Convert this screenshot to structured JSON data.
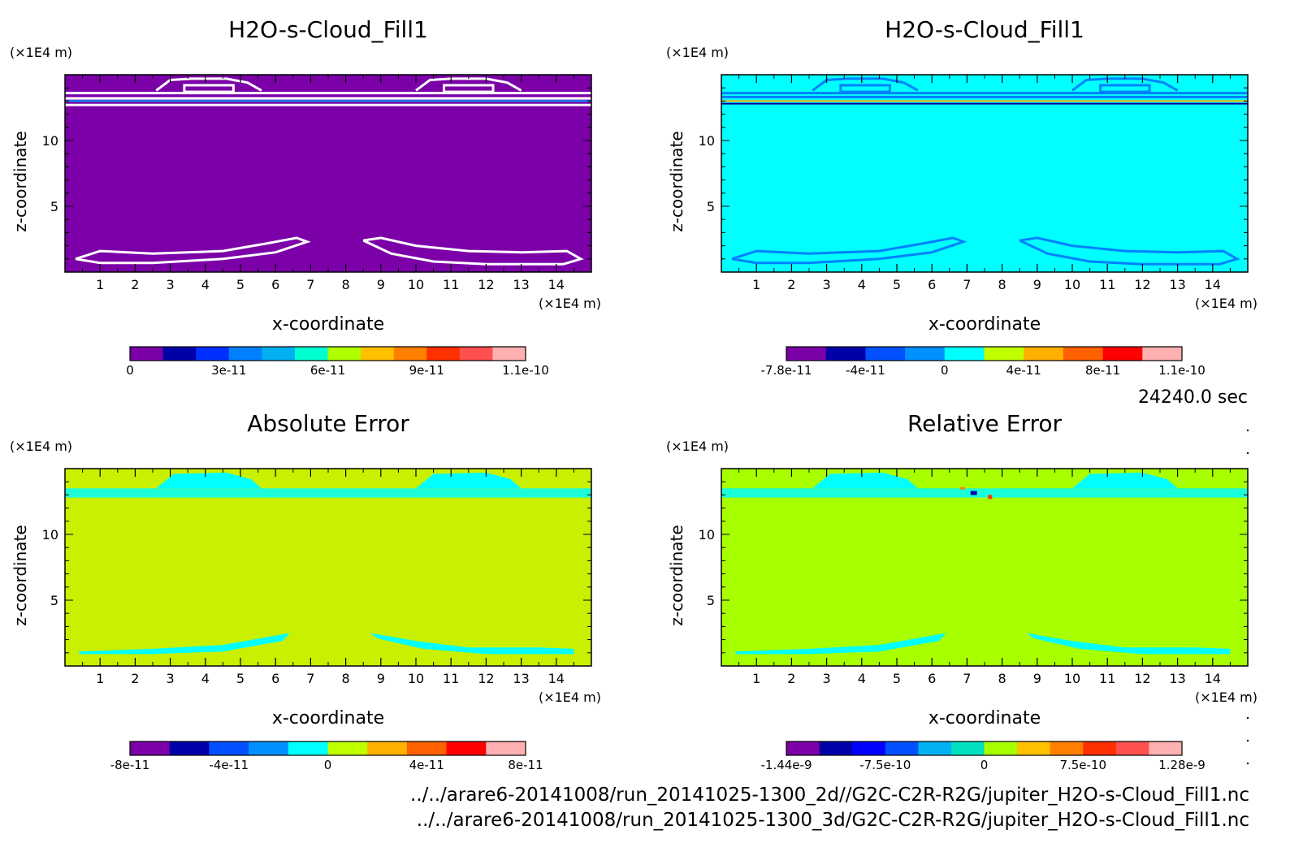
{
  "time_label": "24240.0 sec",
  "footer_lines": [
    "../../arare6-20141008/run_20141025-1300_2d//G2C-C2R-R2G/jupiter_H2O-s-Cloud_Fill1.nc",
    "../../arare6-20141008/run_20141025-1300_3d/G2C-C2R-R2G/jupiter_H2O-s-Cloud_Fill1.nc"
  ],
  "chart_data": [
    {
      "type": "heatmap",
      "title": "H2O-s-Cloud_Fill1",
      "xlabel": "x-coordinate",
      "ylabel": "z-coordinate",
      "x_unit": "(×1E4 m)",
      "z_unit": "(×1E4 m)",
      "xlim": [
        0,
        15
      ],
      "zlim": [
        0,
        15
      ],
      "x_ticks": [
        "1",
        "2",
        "3",
        "4",
        "5",
        "6",
        "7",
        "8",
        "9",
        "10",
        "11",
        "12",
        "13",
        "14"
      ],
      "z_ticks": [
        "5",
        "10"
      ],
      "background_color": "#7b00a8",
      "features": "white contour lines at cloud layer near z≈13-14 and near-surface bands z≈1-3",
      "colorbar": {
        "colors": [
          "#7b00a8",
          "#0000a8",
          "#0030ff",
          "#0080ff",
          "#00b0f0",
          "#00ffd0",
          "#b0ff00",
          "#ffc000",
          "#ff8000",
          "#ff3000",
          "#ff5050",
          "#ffb0b0"
        ],
        "tick_labels": [
          "0",
          "3e-11",
          "6e-11",
          "9e-11",
          "1.1e-10"
        ]
      }
    },
    {
      "type": "heatmap",
      "title": "H2O-s-Cloud_Fill1",
      "xlabel": "x-coordinate",
      "ylabel": "z-coordinate",
      "x_unit": "(×1E4 m)",
      "z_unit": "(×1E4 m)",
      "xlim": [
        0,
        15
      ],
      "zlim": [
        0,
        15
      ],
      "x_ticks": [
        "1",
        "2",
        "3",
        "4",
        "5",
        "6",
        "7",
        "8",
        "9",
        "10",
        "11",
        "12",
        "13",
        "14"
      ],
      "z_ticks": [
        "5",
        "10"
      ],
      "background_color": "#00ffff",
      "features": "blue contours at cloud layer near z≈13-14 with thin yellow/red line, near-surface blue bands",
      "colorbar": {
        "colors": [
          "#7b00a8",
          "#0000a8",
          "#0050ff",
          "#0090ff",
          "#00ffff",
          "#c0ff00",
          "#ffb000",
          "#ff6000",
          "#ff0000",
          "#ffb0b0"
        ],
        "tick_labels": [
          "-7.8e-11",
          "-4e-11",
          "0",
          "4e-11",
          "8e-11",
          "1.1e-10"
        ]
      }
    },
    {
      "type": "heatmap",
      "title": "Absolute Error",
      "xlabel": "x-coordinate",
      "ylabel": "z-coordinate",
      "x_unit": "(×1E4 m)",
      "z_unit": "(×1E4 m)",
      "xlim": [
        0,
        15
      ],
      "zlim": [
        0,
        15
      ],
      "x_ticks": [
        "1",
        "2",
        "3",
        "4",
        "5",
        "6",
        "7",
        "8",
        "9",
        "10",
        "11",
        "12",
        "13",
        "14"
      ],
      "z_ticks": [
        "5",
        "10"
      ],
      "background_color": "#c8f000",
      "features": "cyan patches at cloud layer and near-surface bands",
      "colorbar": {
        "colors": [
          "#7b00a8",
          "#0000a8",
          "#0050ff",
          "#0090ff",
          "#00ffff",
          "#c0ff00",
          "#ffb000",
          "#ff6000",
          "#ff0000",
          "#ffb0b0"
        ],
        "tick_labels": [
          "-8e-11",
          "-4e-11",
          "0",
          "4e-11",
          "8e-11"
        ]
      }
    },
    {
      "type": "heatmap",
      "title": "Relative Error",
      "xlabel": "x-coordinate",
      "ylabel": "z-coordinate",
      "x_unit": "(×1E4 m)",
      "z_unit": "(×1E4 m)",
      "xlim": [
        0,
        15
      ],
      "zlim": [
        0,
        15
      ],
      "x_ticks": [
        "1",
        "2",
        "3",
        "4",
        "5",
        "6",
        "7",
        "8",
        "9",
        "10",
        "11",
        "12",
        "13",
        "14"
      ],
      "z_ticks": [
        "5",
        "10"
      ],
      "background_color": "#a8ff00",
      "features": "cyan patches at cloud layer, small red/blue specks near x≈7-8, near-surface cyan bands",
      "colorbar": {
        "colors": [
          "#7b00a8",
          "#0000a8",
          "#0000ff",
          "#0050ff",
          "#00b0f0",
          "#00e0c0",
          "#a8ff00",
          "#ffc000",
          "#ff8000",
          "#ff3000",
          "#ff5050",
          "#ffb0b0"
        ],
        "tick_labels": [
          "-1.44e-9",
          "-7.5e-10",
          "0",
          "7.5e-10",
          "1.28e-9"
        ]
      }
    }
  ]
}
